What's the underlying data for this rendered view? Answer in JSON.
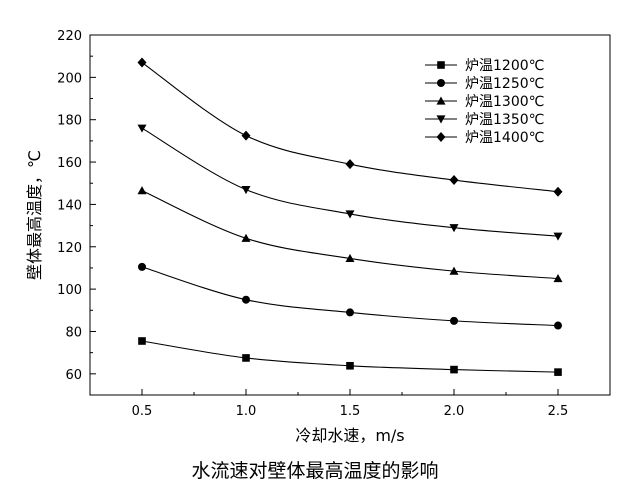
{
  "figure": {
    "caption": "水流速对壁体最高温度的影响"
  },
  "chart_data": {
    "type": "line",
    "xlabel": "冷却水速，m/s",
    "ylabel": "壁体最高温度，℃",
    "x": [
      0.5,
      1.0,
      1.5,
      2.0,
      2.5
    ],
    "xlim": [
      0.25,
      2.75
    ],
    "ylim": [
      50,
      220
    ],
    "xticks": [
      "0.5",
      "1.0",
      "1.5",
      "2.0",
      "2.5"
    ],
    "yticks": [
      "60",
      "80",
      "100",
      "120",
      "140",
      "160",
      "180",
      "200",
      "220"
    ],
    "grid": false,
    "legend_position": "top-right",
    "series": [
      {
        "name": "炉温1200℃",
        "marker": "square",
        "values": [
          75.5,
          67.5,
          63.8,
          62.0,
          60.8
        ]
      },
      {
        "name": "炉温1250℃",
        "marker": "circle",
        "values": [
          110.5,
          95.0,
          89.0,
          85.0,
          82.8
        ]
      },
      {
        "name": "炉温1300℃",
        "marker": "triangle-up",
        "values": [
          146.5,
          124.0,
          114.5,
          108.5,
          105.0
        ]
      },
      {
        "name": "炉温1350℃",
        "marker": "triangle-down",
        "values": [
          176.0,
          147.0,
          135.5,
          129.0,
          125.0
        ]
      },
      {
        "name": "炉温1400℃",
        "marker": "diamond",
        "values": [
          207.0,
          172.5,
          159.0,
          151.5,
          146.0
        ]
      }
    ]
  }
}
